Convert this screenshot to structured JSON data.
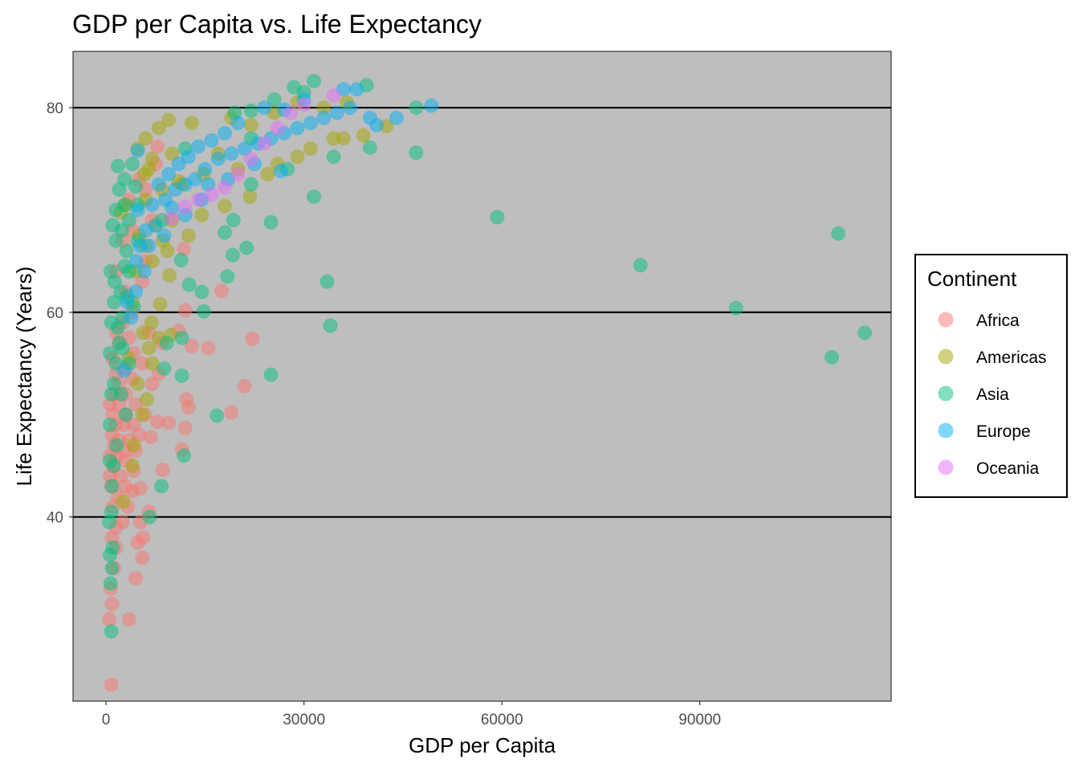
{
  "chart_data": {
    "type": "scatter",
    "title": "GDP per Capita vs. Life Expectancy",
    "xlabel": "GDP per Capita",
    "ylabel": "Life Expectancy (Years)",
    "xlim": [
      -5000,
      119000
    ],
    "ylim": [
      22,
      85.5
    ],
    "x_ticks": [
      0,
      30000,
      60000,
      90000
    ],
    "x_tick_labels": [
      "0",
      "30000",
      "60000",
      "90000"
    ],
    "y_ticks": [
      40,
      60,
      80
    ],
    "y_tick_labels": [
      "40",
      "60",
      "80"
    ],
    "grid": "horizontal major lines only",
    "plot_background": "#bebebe",
    "gridline_color": "#000000",
    "point_opacity": 0.5,
    "legend": {
      "title": "Continent",
      "position": "right",
      "entries": [
        "Africa",
        "Americas",
        "Asia",
        "Europe",
        "Oceania"
      ]
    },
    "series": [
      {
        "name": "Africa",
        "color": "#F8766D",
        "points": [
          [
            800,
            23.6
          ],
          [
            500,
            30
          ],
          [
            3500,
            30
          ],
          [
            900,
            31.5
          ],
          [
            700,
            33
          ],
          [
            4500,
            34
          ],
          [
            1200,
            35
          ],
          [
            5500,
            36
          ],
          [
            1500,
            37
          ],
          [
            4800,
            37.5
          ],
          [
            900,
            38
          ],
          [
            5600,
            38
          ],
          [
            1500,
            39
          ],
          [
            2500,
            39.5
          ],
          [
            5200,
            39.5
          ],
          [
            6500,
            40.5
          ],
          [
            1000,
            41
          ],
          [
            3300,
            41
          ],
          [
            1800,
            42
          ],
          [
            4000,
            42.5
          ],
          [
            5200,
            42.8
          ],
          [
            800,
            43
          ],
          [
            3000,
            43
          ],
          [
            600,
            44
          ],
          [
            2200,
            44
          ],
          [
            4200,
            44.5
          ],
          [
            8600,
            44.6
          ],
          [
            1000,
            45
          ],
          [
            3000,
            45.5
          ],
          [
            600,
            46
          ],
          [
            1700,
            46
          ],
          [
            2800,
            46.5
          ],
          [
            4500,
            46.5
          ],
          [
            11500,
            46.6
          ],
          [
            1200,
            47
          ],
          [
            2000,
            47.5
          ],
          [
            3500,
            47.5
          ],
          [
            6800,
            47.8
          ],
          [
            900,
            48
          ],
          [
            5000,
            48
          ],
          [
            12000,
            48.7
          ],
          [
            1500,
            49
          ],
          [
            2700,
            49
          ],
          [
            4200,
            49
          ],
          [
            7800,
            49.3
          ],
          [
            9500,
            49.2
          ],
          [
            1000,
            50
          ],
          [
            3000,
            50
          ],
          [
            5900,
            50
          ],
          [
            19000,
            50.2
          ],
          [
            600,
            51
          ],
          [
            2000,
            51
          ],
          [
            4500,
            51
          ],
          [
            1200,
            52
          ],
          [
            3000,
            52
          ],
          [
            12500,
            50.7
          ],
          [
            2000,
            53
          ],
          [
            4000,
            53.5
          ],
          [
            7000,
            53
          ],
          [
            12200,
            51.5
          ],
          [
            21000,
            52.8
          ],
          [
            1500,
            54
          ],
          [
            3000,
            54.5
          ],
          [
            5500,
            55
          ],
          [
            8000,
            54
          ],
          [
            1000,
            55.5
          ],
          [
            4200,
            56
          ],
          [
            2000,
            57
          ],
          [
            3500,
            57.5
          ],
          [
            8500,
            57
          ],
          [
            13000,
            56.7
          ],
          [
            15500,
            56.5
          ],
          [
            1500,
            58
          ],
          [
            6500,
            58
          ],
          [
            11000,
            58.2
          ],
          [
            22200,
            57.4
          ],
          [
            2500,
            59
          ],
          [
            4000,
            60
          ],
          [
            12000,
            60.2
          ],
          [
            17500,
            62.1
          ],
          [
            3000,
            62
          ],
          [
            5500,
            63
          ],
          [
            1500,
            64
          ],
          [
            6000,
            65
          ],
          [
            11800,
            66.2
          ],
          [
            2500,
            67
          ],
          [
            4000,
            68
          ],
          [
            7000,
            69
          ],
          [
            3500,
            71
          ],
          [
            6000,
            72
          ],
          [
            5000,
            73
          ],
          [
            7500,
            74.5
          ],
          [
            7800,
            76.2
          ]
        ]
      },
      {
        "name": "Americas",
        "color": "#A3A500",
        "points": [
          [
            2600,
            41.5
          ],
          [
            4000,
            45
          ],
          [
            4200,
            47
          ],
          [
            5500,
            50
          ],
          [
            6200,
            51.5
          ],
          [
            4800,
            53
          ],
          [
            7000,
            55
          ],
          [
            3500,
            55.5
          ],
          [
            6500,
            56.5
          ],
          [
            8000,
            57.5
          ],
          [
            9800,
            57.8
          ],
          [
            5600,
            58
          ],
          [
            6900,
            59
          ],
          [
            8200,
            60.8
          ],
          [
            4000,
            61
          ],
          [
            9600,
            63.6
          ],
          [
            4500,
            64
          ],
          [
            7000,
            65
          ],
          [
            9300,
            66
          ],
          [
            6000,
            66.5
          ],
          [
            5000,
            67.5
          ],
          [
            8600,
            67
          ],
          [
            12500,
            67.5
          ],
          [
            7500,
            68.5
          ],
          [
            10000,
            69
          ],
          [
            14500,
            69.5
          ],
          [
            18000,
            70.4
          ],
          [
            21800,
            71.3
          ],
          [
            6000,
            71
          ],
          [
            8500,
            72
          ],
          [
            11500,
            72.5
          ],
          [
            5800,
            73.5
          ],
          [
            14800,
            73.5
          ],
          [
            20000,
            74
          ],
          [
            24500,
            73.5
          ],
          [
            26000,
            74.5
          ],
          [
            7000,
            75
          ],
          [
            10000,
            75.5
          ],
          [
            17000,
            75.5
          ],
          [
            29000,
            75.2
          ],
          [
            31000,
            76
          ],
          [
            34500,
            77
          ],
          [
            36000,
            77
          ],
          [
            39000,
            77.3
          ],
          [
            42500,
            78.2
          ],
          [
            6000,
            77
          ],
          [
            8000,
            78
          ],
          [
            9500,
            78.8
          ],
          [
            13000,
            78.5
          ],
          [
            19000,
            79
          ],
          [
            22000,
            78.3
          ],
          [
            25500,
            79.5
          ],
          [
            29000,
            80.5
          ],
          [
            33000,
            80
          ],
          [
            36500,
            80.5
          ],
          [
            4800,
            76
          ],
          [
            6500,
            74
          ],
          [
            11000,
            72.8
          ],
          [
            3000,
            70.5
          ],
          [
            2200,
            69.8
          ]
        ]
      },
      {
        "name": "Asia",
        "color": "#00BF7D",
        "points": [
          [
            800,
            28.8
          ],
          [
            700,
            33.5
          ],
          [
            900,
            35
          ],
          [
            600,
            36.3
          ],
          [
            1000,
            37
          ],
          [
            6600,
            40
          ],
          [
            800,
            40.5
          ],
          [
            8400,
            43
          ],
          [
            1200,
            45
          ],
          [
            11800,
            46
          ],
          [
            1600,
            47
          ],
          [
            600,
            49
          ],
          [
            3000,
            50
          ],
          [
            16800,
            49.9
          ],
          [
            800,
            52
          ],
          [
            2300,
            52
          ],
          [
            1200,
            53
          ],
          [
            11500,
            53.8
          ],
          [
            25000,
            53.9
          ],
          [
            1500,
            55
          ],
          [
            3500,
            55
          ],
          [
            110000,
            55.6
          ],
          [
            8800,
            54.5
          ],
          [
            600,
            56
          ],
          [
            2500,
            56.5
          ],
          [
            2000,
            57
          ],
          [
            9200,
            57
          ],
          [
            11500,
            57.5
          ],
          [
            34000,
            58.7
          ],
          [
            115000,
            58
          ],
          [
            800,
            59
          ],
          [
            2500,
            59.5
          ],
          [
            14800,
            60.1
          ],
          [
            95500,
            60.4
          ],
          [
            1200,
            61
          ],
          [
            3200,
            61.5
          ],
          [
            14500,
            62
          ],
          [
            12600,
            62.7
          ],
          [
            33500,
            63
          ],
          [
            18400,
            63.5
          ],
          [
            700,
            64
          ],
          [
            2800,
            64.5
          ],
          [
            11400,
            65.1
          ],
          [
            81000,
            64.6
          ],
          [
            19200,
            65.6
          ],
          [
            21300,
            66.3
          ],
          [
            1500,
            67
          ],
          [
            4800,
            67
          ],
          [
            18000,
            67.8
          ],
          [
            25000,
            68.8
          ],
          [
            111000,
            67.7
          ],
          [
            1000,
            68.5
          ],
          [
            3500,
            69
          ],
          [
            8500,
            69
          ],
          [
            19300,
            69
          ],
          [
            59300,
            69.3
          ],
          [
            1500,
            70
          ],
          [
            2800,
            70.5
          ],
          [
            4800,
            70.5
          ],
          [
            31500,
            71.3
          ],
          [
            2000,
            72
          ],
          [
            4500,
            72.3
          ],
          [
            2800,
            73
          ],
          [
            22000,
            72.5
          ],
          [
            1800,
            74.3
          ],
          [
            4000,
            74.5
          ],
          [
            27500,
            74
          ],
          [
            34500,
            75.2
          ],
          [
            47000,
            75.6
          ],
          [
            40000,
            76.1
          ],
          [
            12000,
            76
          ],
          [
            22000,
            77
          ],
          [
            47000,
            80
          ],
          [
            28500,
            82
          ],
          [
            31500,
            82.6
          ],
          [
            39500,
            82.2
          ],
          [
            25500,
            80.8
          ],
          [
            30000,
            81.5
          ],
          [
            22000,
            79.7
          ],
          [
            19500,
            79.5
          ],
          [
            3500,
            64
          ],
          [
            2200,
            62
          ],
          [
            1800,
            58.5
          ],
          [
            600,
            45.5
          ],
          [
            900,
            43
          ],
          [
            500,
            39.5
          ],
          [
            2400,
            68
          ],
          [
            3100,
            66
          ],
          [
            1300,
            63
          ],
          [
            4200,
            60.5
          ]
        ]
      },
      {
        "name": "Europe",
        "color": "#00B0F6",
        "points": [
          [
            2700,
            54.3
          ],
          [
            3800,
            59.5
          ],
          [
            4500,
            62
          ],
          [
            5800,
            64
          ],
          [
            6500,
            66.5
          ],
          [
            7500,
            68.5
          ],
          [
            4800,
            70
          ],
          [
            9000,
            71
          ],
          [
            10500,
            72
          ],
          [
            12000,
            72.5
          ],
          [
            13500,
            73
          ],
          [
            15000,
            74
          ],
          [
            17000,
            75
          ],
          [
            19000,
            75.5
          ],
          [
            21000,
            76
          ],
          [
            23000,
            76.5
          ],
          [
            25000,
            77
          ],
          [
            27000,
            77.5
          ],
          [
            29000,
            78
          ],
          [
            31000,
            78.5
          ],
          [
            33000,
            79
          ],
          [
            35000,
            79.5
          ],
          [
            37000,
            80
          ],
          [
            40000,
            79
          ],
          [
            44000,
            79
          ],
          [
            49300,
            80.2
          ],
          [
            41000,
            78.3
          ],
          [
            36000,
            81.8
          ],
          [
            38000,
            81.8
          ],
          [
            30000,
            80.8
          ],
          [
            27000,
            79.8
          ],
          [
            24000,
            80
          ],
          [
            20000,
            78.5
          ],
          [
            18000,
            77.5
          ],
          [
            16000,
            76.8
          ],
          [
            14000,
            76.2
          ],
          [
            12500,
            75.2
          ],
          [
            11000,
            74.5
          ],
          [
            9500,
            73.5
          ],
          [
            8000,
            72.5
          ],
          [
            7000,
            70.5
          ],
          [
            6000,
            68
          ],
          [
            5200,
            66.5
          ],
          [
            4600,
            65
          ],
          [
            3200,
            61
          ],
          [
            8800,
            67.5
          ],
          [
            12000,
            69.5
          ],
          [
            14500,
            71
          ],
          [
            18500,
            73
          ],
          [
            22500,
            74.5
          ],
          [
            26500,
            73.8
          ],
          [
            15500,
            72.5
          ],
          [
            10000,
            70.2
          ],
          [
            4800,
            75.8
          ]
        ]
      },
      {
        "name": "Oceania",
        "color": "#E76BF3",
        "points": [
          [
            10000,
            69.2
          ],
          [
            12000,
            70.3
          ],
          [
            14000,
            71
          ],
          [
            16000,
            71.5
          ],
          [
            18000,
            72.2
          ],
          [
            20000,
            73.5
          ],
          [
            22000,
            75
          ],
          [
            24000,
            76.5
          ],
          [
            26000,
            78
          ],
          [
            28000,
            79.5
          ],
          [
            30000,
            80.3
          ],
          [
            34500,
            81.2
          ]
        ]
      }
    ]
  }
}
